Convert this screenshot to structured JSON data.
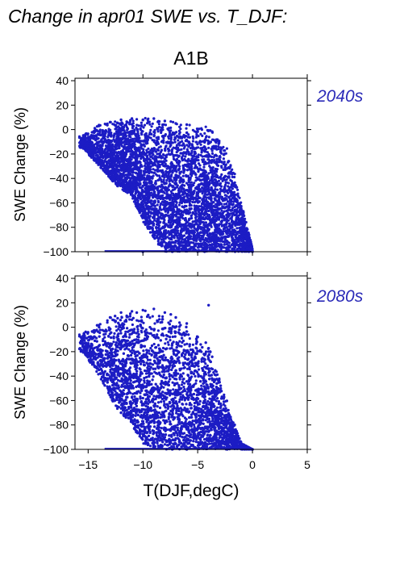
{
  "figure": {
    "title": "Change in apr01 SWE vs. T_DJF:",
    "scenario": "A1B",
    "xlabel": "T(DJF,degC)",
    "ylabel": "SWE Change (%)",
    "period_labels": [
      "2040s",
      "2080s"
    ],
    "x_ticks": [
      "−15",
      "−10",
      "−5",
      "0",
      "5"
    ],
    "y_ticks": [
      "40",
      "20",
      "0",
      "−20",
      "−40",
      "−60",
      "−80",
      "−100"
    ],
    "colors": {
      "points": "#1c1cc4",
      "period_text": "#2a2ab8",
      "axis": "#000000"
    }
  },
  "chart_data": [
    {
      "type": "scatter",
      "panel": "2040s",
      "title": "2040s",
      "xlabel": "T(DJF,degC)",
      "ylabel": "SWE Change (%)",
      "xlim": [
        -16.2,
        5
      ],
      "ylim": [
        -100,
        42
      ],
      "x_ticks": [
        -15,
        -10,
        -5,
        0,
        5
      ],
      "y_ticks": [
        40,
        20,
        0,
        -20,
        -40,
        -60,
        -80,
        -100
      ],
      "grid": false,
      "legend": "none",
      "envelope": {
        "description_x": [
          -15.5,
          -14,
          -12.5,
          -11,
          -10,
          -9,
          -8,
          -7,
          -6,
          -5,
          -4,
          -3,
          -2,
          -1,
          0
        ],
        "upper_y": [
          -5,
          4,
          7,
          9,
          10,
          9,
          8,
          7,
          6,
          4,
          2,
          -5,
          -20,
          -60,
          -97
        ],
        "lower_y": [
          -15,
          -30,
          -45,
          -55,
          -75,
          -90,
          -100,
          -100,
          -100,
          -100,
          -100,
          -100,
          -100,
          -100,
          -100
        ]
      },
      "points_sample": [
        {
          "x": -15.5,
          "y": -10
        },
        {
          "x": -14,
          "y": 3
        },
        {
          "x": -13,
          "y": 6
        },
        {
          "x": -12,
          "y": 8
        },
        {
          "x": -11,
          "y": 9
        },
        {
          "x": -10,
          "y": 8
        },
        {
          "x": -9,
          "y": 9
        },
        {
          "x": -8,
          "y": 7
        },
        {
          "x": -7,
          "y": 5
        },
        {
          "x": -6,
          "y": 4
        },
        {
          "x": -5,
          "y": 0
        },
        {
          "x": -4,
          "y": -10
        },
        {
          "x": -3,
          "y": -25
        },
        {
          "x": -2,
          "y": -50
        },
        {
          "x": -1,
          "y": -85
        },
        {
          "x": 0,
          "y": -100
        },
        {
          "x": -9,
          "y": -60
        },
        {
          "x": -7,
          "y": -80
        },
        {
          "x": -12,
          "y": -40
        },
        {
          "x": -10,
          "y": -100
        }
      ]
    },
    {
      "type": "scatter",
      "panel": "2080s",
      "title": "2080s",
      "xlabel": "T(DJF,degC)",
      "ylabel": "SWE Change (%)",
      "xlim": [
        -16.2,
        5
      ],
      "ylim": [
        -100,
        42
      ],
      "x_ticks": [
        -15,
        -10,
        -5,
        0,
        5
      ],
      "y_ticks": [
        40,
        20,
        0,
        -20,
        -40,
        -60,
        -80,
        -100
      ],
      "grid": false,
      "legend": "none",
      "envelope": {
        "description_x": [
          -15.5,
          -14,
          -12.5,
          -11,
          -10,
          -9,
          -8,
          -7,
          -6,
          -5,
          -4,
          -3,
          -2,
          -1,
          0
        ],
        "upper_y": [
          -5,
          3,
          10,
          13,
          14,
          14,
          13,
          10,
          5,
          -5,
          -15,
          -40,
          -70,
          -95,
          -100
        ],
        "lower_y": [
          -20,
          -40,
          -65,
          -80,
          -95,
          -100,
          -100,
          -100,
          -100,
          -100,
          -100,
          -100,
          -100,
          -100,
          -100
        ]
      },
      "points_sample": [
        {
          "x": -15.5,
          "y": -10
        },
        {
          "x": -14,
          "y": 0
        },
        {
          "x": -13,
          "y": 8
        },
        {
          "x": -12,
          "y": 12
        },
        {
          "x": -11,
          "y": 13
        },
        {
          "x": -10,
          "y": 14
        },
        {
          "x": -9,
          "y": 15
        },
        {
          "x": -8,
          "y": 12
        },
        {
          "x": -7,
          "y": 8
        },
        {
          "x": -6,
          "y": 3
        },
        {
          "x": -5,
          "y": -8
        },
        {
          "x": -4,
          "y": -20
        },
        {
          "x": -3,
          "y": -45
        },
        {
          "x": -2,
          "y": -75
        },
        {
          "x": -1,
          "y": -98
        },
        {
          "x": 0,
          "y": -100
        },
        {
          "x": -4,
          "y": 18
        },
        {
          "x": -8,
          "y": -90
        },
        {
          "x": -12,
          "y": -70
        },
        {
          "x": -6,
          "y": -100
        }
      ]
    }
  ]
}
